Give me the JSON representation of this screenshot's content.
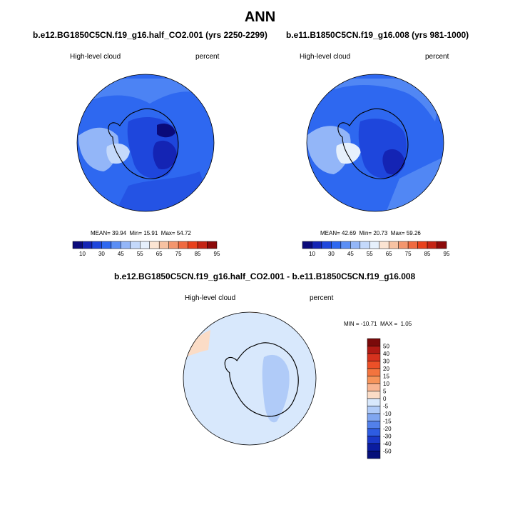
{
  "title": "ANN",
  "panels": [
    {
      "case_title": "b.e12.BG1850C5CN.f19_g16.half_CO2.001 (yrs 2250-2299)",
      "variable": "High-level cloud",
      "units": "percent",
      "stats": {
        "mean": "39.94",
        "min": "15.91",
        "max": "54.72"
      }
    },
    {
      "case_title": "b.e11.B1850C5CN.f19_g16.008 (yrs 981-1000)",
      "variable": "High-level cloud",
      "units": "percent",
      "stats": {
        "mean": "42.69",
        "min": "20.73",
        "max": "59.26"
      }
    }
  ],
  "diff_panel": {
    "case_title": "b.e12.BG1850C5CN.f19_g16.half_CO2.001 - b.e11.B1850C5CN.f19_g16.008",
    "variable": "High-level cloud",
    "units": "percent",
    "stats": {
      "min": "-10.71",
      "max": "1.05"
    }
  },
  "labels": {
    "mean": "MEAN=",
    "min": "Min=",
    "max": "Max=",
    "diff_min": "MIN =",
    "diff_max": "MAX ="
  },
  "chart_data": {
    "type": "heatmap",
    "projection": "south-polar-stereographic",
    "field_colorbar": {
      "orientation": "horizontal",
      "tick_labels": [
        "10",
        "30",
        "45",
        "55",
        "65",
        "75",
        "85",
        "95"
      ],
      "colors": [
        "#0a0a7a",
        "#1424b4",
        "#1e46dc",
        "#2e68f0",
        "#5a8ef5",
        "#93b6f8",
        "#c4d9fb",
        "#e6f0fc",
        "#fbe4d2",
        "#f7c2a2",
        "#f3966e",
        "#ef6a40",
        "#e8411c",
        "#c42414",
        "#8c0a0a"
      ]
    },
    "diff_colorbar": {
      "orientation": "vertical",
      "tick_labels": [
        "50",
        "40",
        "30",
        "20",
        "15",
        "10",
        "5",
        "0",
        "-5",
        "-10",
        "-15",
        "-20",
        "-30",
        "-40",
        "-50"
      ],
      "colors": [
        "#7a0a0a",
        "#b01a14",
        "#d6321e",
        "#ec5028",
        "#f3743e",
        "#f6945a",
        "#f8b592",
        "#fbdcc6",
        "#d8e8fc",
        "#b0cbf8",
        "#80a6f0",
        "#5280ea",
        "#2e5ce2",
        "#1a38c8",
        "#0a1ca0",
        "#06107a"
      ]
    }
  }
}
